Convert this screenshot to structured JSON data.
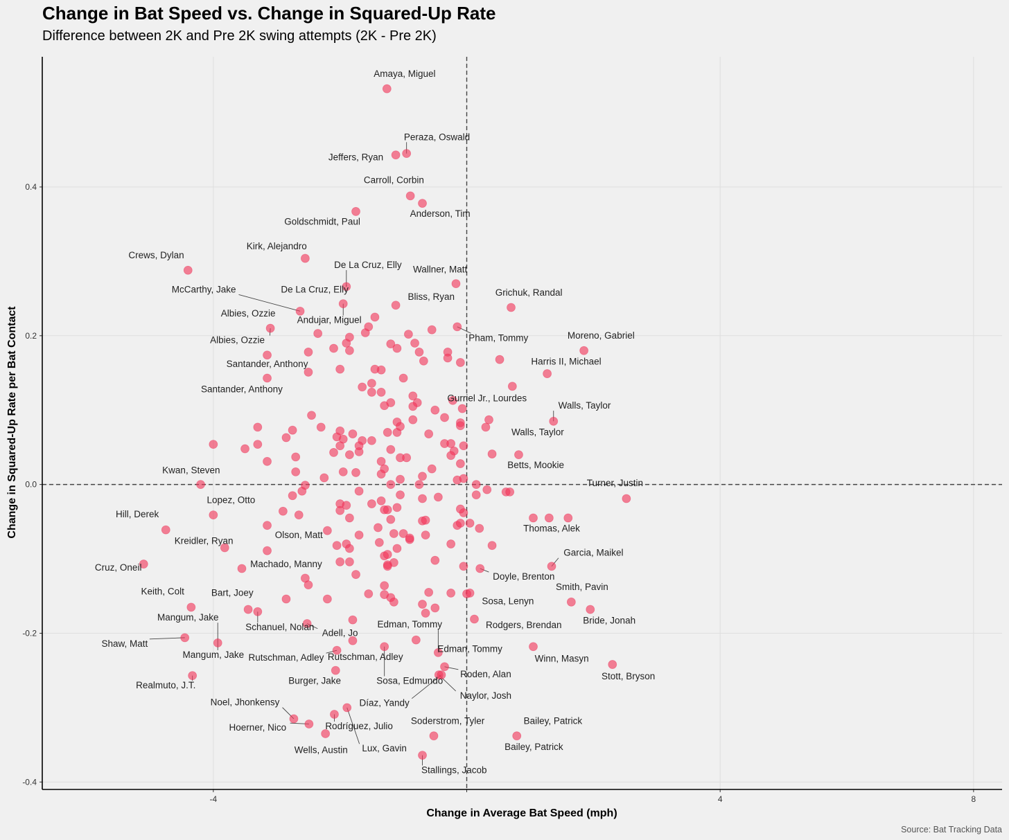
{
  "chart_data": {
    "type": "scatter",
    "title": "Change in Bat Speed vs. Change in Squared-Up Rate",
    "subtitle": "Difference between 2K and Pre 2K swing attempts (2K - Pre 2K)",
    "xlabel": "Change in Average Bat Speed (mph)",
    "ylabel": "Change in Squared-Up Rate per Bat Contact",
    "caption": "Source: Bat Tracking Data",
    "xlim": [
      -6.7,
      8.45
    ],
    "ylim": [
      -0.41,
      0.575
    ],
    "x_ticks": [
      -4,
      0,
      4,
      8
    ],
    "x_tick_labels": [
      "-4",
      "",
      "4",
      "8"
    ],
    "y_ticks": [
      -0.4,
      -0.2,
      0.0,
      0.2,
      0.4
    ],
    "y_tick_labels": [
      "-0.4",
      "-0.2",
      "0.0",
      "0.2",
      "0.4"
    ],
    "grid": true,
    "reference_lines": {
      "x": 0,
      "y": 0
    },
    "labeled_points": [
      {
        "name": "Amaya, Miguel",
        "x": -1.26,
        "y": 0.532,
        "lx": -0.98,
        "ly": 0.548,
        "leader": false
      },
      {
        "name": "Peraza, Oswald",
        "x": -0.95,
        "y": 0.445,
        "lx": -0.47,
        "ly": 0.463,
        "leader": true
      },
      {
        "name": "Jeffers, Ryan",
        "x": -1.12,
        "y": 0.443,
        "lx": -1.75,
        "ly": 0.436,
        "leader": false
      },
      {
        "name": "Carroll, Corbin",
        "x": -0.89,
        "y": 0.388,
        "lx": -1.15,
        "ly": 0.405,
        "leader": false
      },
      {
        "name": "Anderson, Tim",
        "x": -0.7,
        "y": 0.378,
        "lx": -0.42,
        "ly": 0.36,
        "leader": false
      },
      {
        "name": "Goldschmidt, Paul",
        "x": -1.75,
        "y": 0.367,
        "lx": -2.28,
        "ly": 0.349,
        "leader": false
      },
      {
        "name": "Kirk, Alejandro",
        "x": -2.55,
        "y": 0.304,
        "lx": -3.0,
        "ly": 0.316,
        "leader": false
      },
      {
        "name": "Crews, Dylan",
        "x": -4.4,
        "y": 0.288,
        "lx": -4.9,
        "ly": 0.304,
        "leader": false
      },
      {
        "name": "De La Cruz, Elly",
        "x": -1.9,
        "y": 0.266,
        "lx": -1.56,
        "ly": 0.291,
        "leader": true
      },
      {
        "name": "De La Cruz, Elly",
        "x": -1.9,
        "y": 0.266,
        "lx": -2.4,
        "ly": 0.258,
        "leader": true
      },
      {
        "name": "Wallner, Matt",
        "x": -0.17,
        "y": 0.27,
        "lx": -0.42,
        "ly": 0.285,
        "leader": false
      },
      {
        "name": "McCarthy, Jake",
        "x": -2.63,
        "y": 0.233,
        "lx": -4.15,
        "ly": 0.258,
        "leader": true
      },
      {
        "name": "Grichuk, Randal",
        "x": 0.7,
        "y": 0.238,
        "lx": 0.98,
        "ly": 0.254,
        "leader": false
      },
      {
        "name": "Bliss, Ryan",
        "x": -1.12,
        "y": 0.241,
        "lx": -0.56,
        "ly": 0.248,
        "leader": false
      },
      {
        "name": "Albies, Ozzie",
        "x": -3.1,
        "y": 0.21,
        "lx": -3.45,
        "ly": 0.226,
        "leader": false
      },
      {
        "name": "Andujar, Miguel",
        "x": -1.95,
        "y": 0.243,
        "lx": -2.17,
        "ly": 0.217,
        "leader": true
      },
      {
        "name": "Albies, Ozzie",
        "x": -3.1,
        "y": 0.21,
        "lx": -3.62,
        "ly": 0.19,
        "leader": true
      },
      {
        "name": "Pham, Tommy",
        "x": -0.15,
        "y": 0.212,
        "lx": 0.5,
        "ly": 0.193,
        "leader": true
      },
      {
        "name": "Moreno, Gabriel",
        "x": 1.85,
        "y": 0.18,
        "lx": 2.12,
        "ly": 0.196,
        "leader": false
      },
      {
        "name": "Harris II, Michael",
        "x": 1.27,
        "y": 0.149,
        "lx": 1.57,
        "ly": 0.161,
        "leader": false
      },
      {
        "name": "Santander, Anthony",
        "x": -3.15,
        "y": 0.143,
        "lx": -3.15,
        "ly": 0.158,
        "leader": false
      },
      {
        "name": "Santander, Anthony",
        "x": -3.15,
        "y": 0.143,
        "lx": -3.55,
        "ly": 0.124,
        "leader": false
      },
      {
        "name": "Gurriel Jr., Lourdes",
        "x": -0.22,
        "y": 0.113,
        "lx": 0.32,
        "ly": 0.112,
        "leader": false
      },
      {
        "name": "Walls, Taylor",
        "x": 1.37,
        "y": 0.085,
        "lx": 1.86,
        "ly": 0.102,
        "leader": true
      },
      {
        "name": "Walls, Taylor",
        "x": 1.37,
        "y": 0.085,
        "lx": 1.12,
        "ly": 0.066,
        "leader": false
      },
      {
        "name": "Betts, Mookie",
        "x": 0.82,
        "y": 0.04,
        "lx": 1.09,
        "ly": 0.022,
        "leader": false
      },
      {
        "name": "Kwan, Steven",
        "x": -4.2,
        "y": 0.0,
        "lx": -4.35,
        "ly": 0.015,
        "leader": false
      },
      {
        "name": "Turner, Justin",
        "x": 2.52,
        "y": -0.019,
        "lx": 2.34,
        "ly": -0.002,
        "leader": false
      },
      {
        "name": "Lopez, Otto",
        "x": -4.0,
        "y": -0.041,
        "lx": -3.72,
        "ly": -0.025,
        "leader": false
      },
      {
        "name": "Hill, Derek",
        "x": -4.75,
        "y": -0.061,
        "lx": -5.2,
        "ly": -0.044,
        "leader": false
      },
      {
        "name": "Thomas, Alek",
        "x": 1.6,
        "y": -0.045,
        "lx": 1.34,
        "ly": -0.063,
        "leader": false
      },
      {
        "name": "Kreidler, Ryan",
        "x": -3.82,
        "y": -0.085,
        "lx": -4.15,
        "ly": -0.08,
        "leader": false
      },
      {
        "name": "Olson, Matt",
        "x": -3.15,
        "y": -0.089,
        "lx": -2.65,
        "ly": -0.072,
        "leader": false
      },
      {
        "name": "Garcia, Maikel",
        "x": 1.34,
        "y": -0.11,
        "lx": 2.0,
        "ly": -0.096,
        "leader": true
      },
      {
        "name": "Cruz, Oneil",
        "x": -5.1,
        "y": -0.107,
        "lx": -5.5,
        "ly": -0.116,
        "leader": false
      },
      {
        "name": "Machado, Manny",
        "x": -3.55,
        "y": -0.113,
        "lx": -2.85,
        "ly": -0.111,
        "leader": false
      },
      {
        "name": "Doyle, Brenton",
        "x": 0.21,
        "y": -0.113,
        "lx": 0.9,
        "ly": -0.128,
        "leader": true
      },
      {
        "name": "Smith, Pavin",
        "x": 1.65,
        "y": -0.158,
        "lx": 1.82,
        "ly": -0.142,
        "leader": false
      },
      {
        "name": "Keith, Colt",
        "x": -4.35,
        "y": -0.165,
        "lx": -4.8,
        "ly": -0.148,
        "leader": false
      },
      {
        "name": "Bart, Joey",
        "x": -3.45,
        "y": -0.168,
        "lx": -3.7,
        "ly": -0.15,
        "leader": false
      },
      {
        "name": "Sosa, Lenyn",
        "x": 0.0,
        "y": -0.147,
        "lx": 0.65,
        "ly": -0.161,
        "leader": false
      },
      {
        "name": "Bride, Jonah",
        "x": 1.95,
        "y": -0.168,
        "lx": 2.25,
        "ly": -0.187,
        "leader": false
      },
      {
        "name": "Mangum, Jake",
        "x": -3.93,
        "y": -0.213,
        "lx": -4.4,
        "ly": -0.183,
        "leader": true
      },
      {
        "name": "Schanuel, Nolan",
        "x": -3.3,
        "y": -0.171,
        "lx": -2.95,
        "ly": -0.196,
        "leader": true
      },
      {
        "name": "Edman, Tommy",
        "x": -0.45,
        "y": -0.226,
        "lx": -0.9,
        "ly": -0.192,
        "leader": true
      },
      {
        "name": "Rodgers, Brendan",
        "x": 0.12,
        "y": -0.181,
        "lx": 0.9,
        "ly": -0.193,
        "leader": false
      },
      {
        "name": "Adell, Jo",
        "x": -2.52,
        "y": -0.187,
        "lx": -2.0,
        "ly": -0.204,
        "leader": true
      },
      {
        "name": "Shaw, Matt",
        "x": -4.45,
        "y": -0.206,
        "lx": -5.4,
        "ly": -0.218,
        "leader": true
      },
      {
        "name": "Edman, Tommy",
        "x": -0.45,
        "y": -0.226,
        "lx": 0.05,
        "ly": -0.225,
        "leader": false
      },
      {
        "name": "Mangum, Jake",
        "x": -3.93,
        "y": -0.213,
        "lx": -4.0,
        "ly": -0.233,
        "leader": true
      },
      {
        "name": "Rutschman, Adley",
        "x": -2.05,
        "y": -0.223,
        "lx": -2.85,
        "ly": -0.237,
        "leader": true
      },
      {
        "name": "Rutschman, Adley",
        "x": -2.05,
        "y": -0.223,
        "lx": -1.6,
        "ly": -0.236,
        "leader": false
      },
      {
        "name": "Winn, Masyn",
        "x": 1.05,
        "y": -0.218,
        "lx": 1.5,
        "ly": -0.238,
        "leader": false
      },
      {
        "name": "Stott, Bryson",
        "x": 2.3,
        "y": -0.242,
        "lx": 2.55,
        "ly": -0.262,
        "leader": false
      },
      {
        "name": "Roden, Alan",
        "x": -0.35,
        "y": -0.245,
        "lx": 0.3,
        "ly": -0.259,
        "leader": true
      },
      {
        "name": "Realmuto, J.T.",
        "x": -4.33,
        "y": -0.257,
        "lx": -4.75,
        "ly": -0.274,
        "leader": true
      },
      {
        "name": "Burger, Jake",
        "x": -2.07,
        "y": -0.25,
        "lx": -2.4,
        "ly": -0.268,
        "leader": false
      },
      {
        "name": "Sosa, Edmundo",
        "x": -1.3,
        "y": -0.218,
        "lx": -0.9,
        "ly": -0.268,
        "leader": true
      },
      {
        "name": "Naylor, Josh",
        "x": -0.44,
        "y": -0.256,
        "lx": 0.3,
        "ly": -0.288,
        "leader": true
      },
      {
        "name": "Díaz, Yandy",
        "x": -0.4,
        "y": -0.256,
        "lx": -1.3,
        "ly": -0.298,
        "leader": true
      },
      {
        "name": "Noel, Jhonkensy",
        "x": -2.73,
        "y": -0.315,
        "lx": -3.5,
        "ly": -0.297,
        "leader": true
      },
      {
        "name": "Hoerner, Nico",
        "x": -2.49,
        "y": -0.322,
        "lx": -3.3,
        "ly": -0.331,
        "leader": true
      },
      {
        "name": "Rodríguez, Julio",
        "x": -2.09,
        "y": -0.309,
        "lx": -1.7,
        "ly": -0.329,
        "leader": true
      },
      {
        "name": "Soderstrom, Tyler",
        "x": -0.52,
        "y": -0.338,
        "lx": -0.3,
        "ly": -0.322,
        "leader": false
      },
      {
        "name": "Bailey, Patrick",
        "x": 0.79,
        "y": -0.338,
        "lx": 1.36,
        "ly": -0.322,
        "leader": false
      },
      {
        "name": "Wells, Austin",
        "x": -2.23,
        "y": -0.335,
        "lx": -2.3,
        "ly": -0.361,
        "leader": false
      },
      {
        "name": "Lux, Gavin",
        "x": -1.89,
        "y": -0.3,
        "lx": -1.3,
        "ly": -0.359,
        "leader": true
      },
      {
        "name": "Bailey, Patrick",
        "x": 0.79,
        "y": -0.338,
        "lx": 1.06,
        "ly": -0.357,
        "leader": false
      },
      {
        "name": "Stallings, Jacob",
        "x": -0.7,
        "y": -0.364,
        "lx": -0.2,
        "ly": -0.388,
        "leader": true
      }
    ],
    "other_points": [
      [
        -1.9,
        0.19
      ],
      [
        -1.85,
        0.198
      ],
      [
        -2.1,
        0.183
      ],
      [
        -2.35,
        0.203
      ],
      [
        -1.6,
        0.204
      ],
      [
        -1.45,
        0.225
      ],
      [
        -1.55,
        0.212
      ],
      [
        -2.5,
        0.178
      ],
      [
        -1.2,
        0.189
      ],
      [
        -1.1,
        0.183
      ],
      [
        -0.92,
        0.202
      ],
      [
        -0.82,
        0.19
      ],
      [
        -0.75,
        0.178
      ],
      [
        -0.68,
        0.166
      ],
      [
        -0.55,
        0.208
      ],
      [
        -0.3,
        0.178
      ],
      [
        -0.3,
        0.17
      ],
      [
        -0.1,
        0.164
      ],
      [
        -3.15,
        0.174
      ],
      [
        -2.5,
        0.151
      ],
      [
        -1.85,
        0.18
      ],
      [
        -2.0,
        0.155
      ],
      [
        -1.65,
        0.131
      ],
      [
        -1.5,
        0.136
      ],
      [
        -1.5,
        0.124
      ],
      [
        -1.35,
        0.154
      ],
      [
        -1.45,
        0.155
      ],
      [
        -1.35,
        0.124
      ],
      [
        -1.3,
        0.106
      ],
      [
        -1.2,
        0.11
      ],
      [
        -1.0,
        0.143
      ],
      [
        -0.85,
        0.119
      ],
      [
        -0.78,
        0.11
      ],
      [
        -0.85,
        0.105
      ],
      [
        -0.5,
        0.1
      ],
      [
        -0.35,
        0.09
      ],
      [
        -0.07,
        0.102
      ],
      [
        0.35,
        0.087
      ],
      [
        0.3,
        0.077
      ],
      [
        0.72,
        0.132
      ],
      [
        0.52,
        0.168
      ],
      [
        -1.5,
        0.059
      ],
      [
        -1.65,
        0.059
      ],
      [
        -1.25,
        0.07
      ],
      [
        -1.1,
        0.07
      ],
      [
        -1.1,
        0.084
      ],
      [
        -1.05,
        0.078
      ],
      [
        -0.85,
        0.087
      ],
      [
        -0.6,
        0.068
      ],
      [
        -0.35,
        0.055
      ],
      [
        -0.25,
        0.055
      ],
      [
        -0.2,
        0.045
      ],
      [
        -0.25,
        0.039
      ],
      [
        -0.05,
        0.052
      ],
      [
        -0.1,
        0.083
      ],
      [
        -0.1,
        0.079
      ],
      [
        0.4,
        0.041
      ],
      [
        -2.45,
        0.093
      ],
      [
        -2.3,
        0.077
      ],
      [
        -2.0,
        0.072
      ],
      [
        -2.05,
        0.064
      ],
      [
        -1.95,
        0.061
      ],
      [
        -2.0,
        0.052
      ],
      [
        -1.8,
        0.068
      ],
      [
        -1.7,
        0.052
      ],
      [
        -1.7,
        0.044
      ],
      [
        -1.85,
        0.04
      ],
      [
        -2.1,
        0.043
      ],
      [
        -2.75,
        0.073
      ],
      [
        -2.85,
        0.063
      ],
      [
        -2.7,
        0.037
      ],
      [
        -3.5,
        0.048
      ],
      [
        -3.3,
        0.077
      ],
      [
        -3.3,
        0.054
      ],
      [
        -3.15,
        0.031
      ],
      [
        -4.0,
        0.054
      ],
      [
        -2.7,
        0.017
      ],
      [
        -2.25,
        0.009
      ],
      [
        -1.95,
        0.017
      ],
      [
        -1.75,
        0.016
      ],
      [
        -1.35,
        0.031
      ],
      [
        -1.3,
        0.021
      ],
      [
        -1.35,
        0.014
      ],
      [
        -1.2,
        0.047
      ],
      [
        -1.05,
        0.036
      ],
      [
        -0.95,
        0.036
      ],
      [
        -1.05,
        0.007
      ],
      [
        -0.7,
        0.011
      ],
      [
        -0.55,
        0.021
      ],
      [
        -0.75,
        0.0
      ],
      [
        -0.15,
        0.006
      ],
      [
        -0.1,
        0.028
      ],
      [
        -0.05,
        0.008
      ],
      [
        0.15,
        0.0
      ],
      [
        0.15,
        -0.014
      ],
      [
        0.32,
        -0.007
      ],
      [
        0.62,
        -0.01
      ],
      [
        0.68,
        -0.01
      ],
      [
        -2.6,
        -0.009
      ],
      [
        -2.55,
        -0.001
      ],
      [
        -2.75,
        -0.015
      ],
      [
        -2.9,
        -0.036
      ],
      [
        -2.65,
        -0.041
      ],
      [
        -1.7,
        -0.009
      ],
      [
        -1.35,
        -0.022
      ],
      [
        -1.2,
        0.0
      ],
      [
        -1.1,
        -0.031
      ],
      [
        -1.05,
        -0.014
      ],
      [
        -1.5,
        -0.026
      ],
      [
        -1.3,
        -0.034
      ],
      [
        -0.7,
        -0.019
      ],
      [
        -0.45,
        -0.017
      ],
      [
        -2.0,
        -0.026
      ],
      [
        -2.0,
        -0.035
      ],
      [
        -1.9,
        -0.028
      ],
      [
        -1.25,
        -0.034
      ],
      [
        -1.2,
        -0.047
      ],
      [
        -1.85,
        -0.045
      ],
      [
        -3.15,
        -0.055
      ],
      [
        -2.2,
        -0.062
      ],
      [
        -1.7,
        -0.068
      ],
      [
        -1.4,
        -0.058
      ],
      [
        -1.15,
        -0.066
      ],
      [
        -1.0,
        -0.066
      ],
      [
        -0.9,
        -0.074
      ],
      [
        -0.9,
        -0.072
      ],
      [
        -1.38,
        -0.078
      ],
      [
        -0.65,
        -0.068
      ],
      [
        -0.7,
        -0.049
      ],
      [
        -0.65,
        -0.048
      ],
      [
        -0.15,
        -0.055
      ],
      [
        -0.05,
        -0.038
      ],
      [
        -0.1,
        -0.033
      ],
      [
        0.05,
        -0.052
      ],
      [
        0.2,
        -0.059
      ],
      [
        0.4,
        -0.082
      ],
      [
        -0.25,
        -0.08
      ],
      [
        1.05,
        -0.045
      ],
      [
        1.3,
        -0.045
      ],
      [
        -2.05,
        -0.082
      ],
      [
        -1.9,
        -0.08
      ],
      [
        -1.85,
        -0.086
      ],
      [
        -1.3,
        -0.096
      ],
      [
        -1.1,
        -0.086
      ],
      [
        -1.15,
        -0.105
      ],
      [
        -1.25,
        -0.094
      ],
      [
        -1.25,
        -0.108
      ],
      [
        -2.0,
        -0.104
      ],
      [
        -1.85,
        -0.104
      ],
      [
        -1.75,
        -0.121
      ],
      [
        -1.25,
        -0.11
      ],
      [
        -0.5,
        -0.102
      ],
      [
        -0.05,
        -0.11
      ],
      [
        -2.55,
        -0.126
      ],
      [
        -2.5,
        -0.135
      ],
      [
        -1.3,
        -0.136
      ],
      [
        -1.3,
        -0.148
      ],
      [
        -1.2,
        -0.152
      ],
      [
        -1.15,
        -0.158
      ],
      [
        -1.55,
        -0.147
      ],
      [
        -0.6,
        -0.145
      ],
      [
        -0.25,
        -0.146
      ],
      [
        0.05,
        -0.146
      ],
      [
        -0.7,
        -0.161
      ],
      [
        -0.5,
        -0.166
      ],
      [
        -0.65,
        -0.173
      ],
      [
        -2.85,
        -0.154
      ],
      [
        -2.2,
        -0.154
      ],
      [
        -1.8,
        -0.182
      ],
      [
        -0.8,
        -0.209
      ],
      [
        -1.8,
        -0.21
      ],
      [
        -0.1,
        -0.052
      ]
    ]
  }
}
